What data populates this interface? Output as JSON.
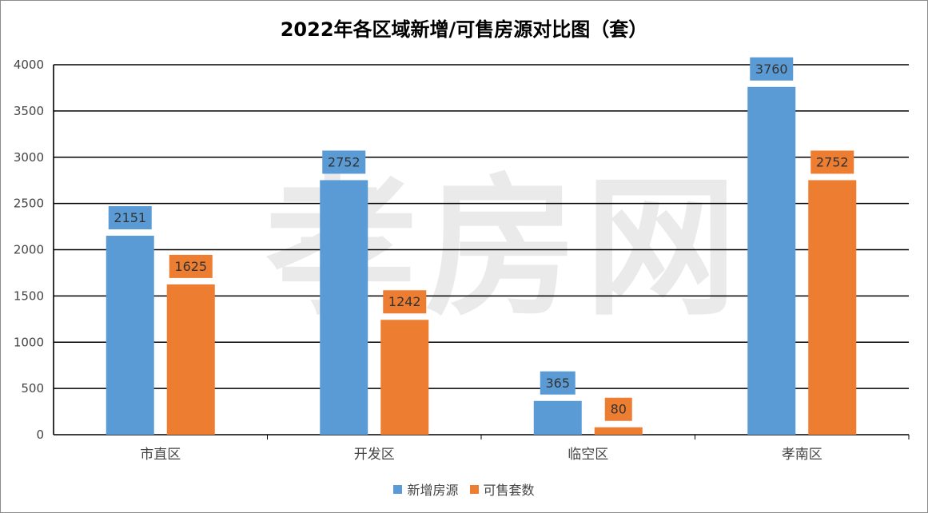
{
  "chart_data": {
    "type": "bar",
    "title": "2022年各区域新增/可售房源对比图（套）",
    "categories": [
      "市直区",
      "开发区",
      "临空区",
      "孝南区"
    ],
    "series": [
      {
        "name": "新增房源",
        "values": [
          2151,
          2752,
          365,
          3760
        ],
        "color": "#5b9bd5"
      },
      {
        "name": "可售套数",
        "values": [
          1625,
          1242,
          80,
          2752
        ],
        "color": "#ed7d31"
      }
    ],
    "ylim": [
      0,
      4000
    ],
    "yticks": [
      0,
      500,
      1000,
      1500,
      2000,
      2500,
      3000,
      3500,
      4000
    ],
    "grid": true,
    "legend_position": "bottom",
    "watermark": "孝房网"
  }
}
